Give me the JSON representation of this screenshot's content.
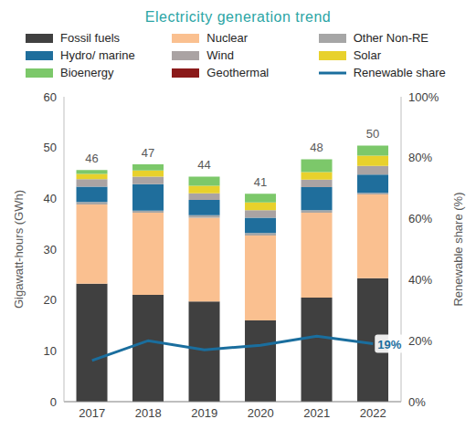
{
  "chart_data": {
    "type": "bar",
    "title": "Electricity generation trend",
    "categories": [
      "2017",
      "2018",
      "2019",
      "2020",
      "2021",
      "2022"
    ],
    "stacked": true,
    "grid": false,
    "legend": "top",
    "y_label": "Gigawatt-hours (GWh)",
    "y2_label": "Renewable share (%)",
    "ylim": [
      0,
      60
    ],
    "yticks": [
      0,
      10,
      20,
      30,
      40,
      50,
      60
    ],
    "y2lim": [
      0,
      100
    ],
    "y2ticks": [
      {
        "value": 0,
        "label": "0%"
      },
      {
        "value": 20,
        "label": "20%"
      },
      {
        "value": 40,
        "label": "40%"
      },
      {
        "value": 60,
        "label": "60%"
      },
      {
        "value": 80,
        "label": "80%"
      },
      {
        "value": 100,
        "label": "100%"
      }
    ],
    "totals": [
      46,
      47,
      44,
      41,
      48,
      50
    ],
    "series": [
      {
        "name": "Fossil fuels",
        "color": "#404040",
        "type": "bar",
        "values": [
          23.2,
          21.0,
          19.7,
          16.0,
          20.5,
          24.3
        ]
      },
      {
        "name": "Nuclear",
        "color": "#fac090",
        "type": "bar",
        "values": [
          15.6,
          16.2,
          16.5,
          16.7,
          16.7,
          16.5
        ]
      },
      {
        "name": "Other Non-RE",
        "color": "#a6a6a6",
        "type": "bar",
        "values": [
          0.5,
          0.4,
          0.5,
          0.5,
          0.5,
          0.3
        ]
      },
      {
        "name": "Hydro/ marine",
        "color": "#1f6e9c",
        "type": "bar",
        "values": [
          3.0,
          5.2,
          3.0,
          3.0,
          4.5,
          3.6
        ]
      },
      {
        "name": "Wind",
        "color": "#aaa3a3",
        "type": "bar",
        "values": [
          1.5,
          1.5,
          1.3,
          1.5,
          1.5,
          1.7
        ]
      },
      {
        "name": "Solar",
        "color": "#e8d12c",
        "type": "bar",
        "values": [
          1.0,
          1.2,
          1.5,
          1.5,
          1.5,
          2.0
        ]
      },
      {
        "name": "Bioenergy",
        "color": "#7cc86a",
        "type": "bar",
        "values": [
          0.8,
          1.2,
          1.8,
          1.7,
          2.5,
          2.0
        ]
      },
      {
        "name": "Geothermal",
        "color": "#8b1a1a",
        "type": "bar",
        "values": [
          0,
          0,
          0,
          0,
          0,
          0
        ]
      },
      {
        "name": "Renewable share",
        "color": "#1a6e9e",
        "type": "line",
        "axis": "y2",
        "values": [
          13.5,
          20,
          17,
          18.5,
          21.5,
          19
        ],
        "value_labels": [
          null,
          null,
          null,
          null,
          null,
          "19%"
        ]
      }
    ]
  }
}
